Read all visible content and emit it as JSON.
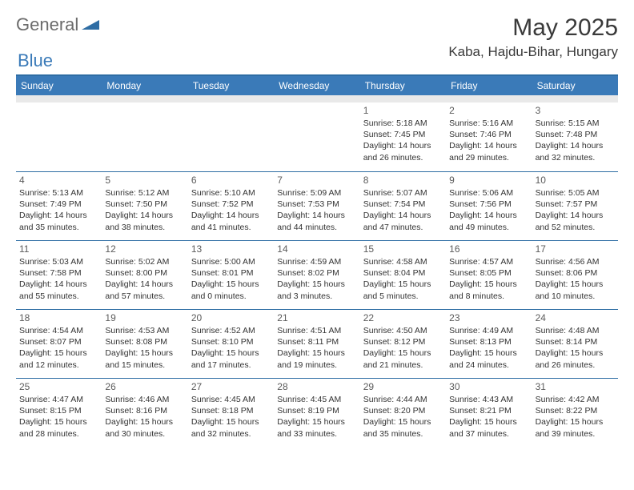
{
  "logo": {
    "general": "General",
    "blue": "Blue",
    "shape_color": "#2e6da4"
  },
  "title": "May 2025",
  "location": "Kaba, Hajdu-Bihar, Hungary",
  "header_bg": "#3a7ab8",
  "sep_bg": "#e9e9e9",
  "divider_color": "#2e6da4",
  "weekdays": [
    "Sunday",
    "Monday",
    "Tuesday",
    "Wednesday",
    "Thursday",
    "Friday",
    "Saturday"
  ],
  "weeks": [
    [
      null,
      null,
      null,
      null,
      {
        "n": "1",
        "sr": "5:18 AM",
        "ss": "7:45 PM",
        "dl": "14 hours and 26 minutes."
      },
      {
        "n": "2",
        "sr": "5:16 AM",
        "ss": "7:46 PM",
        "dl": "14 hours and 29 minutes."
      },
      {
        "n": "3",
        "sr": "5:15 AM",
        "ss": "7:48 PM",
        "dl": "14 hours and 32 minutes."
      }
    ],
    [
      {
        "n": "4",
        "sr": "5:13 AM",
        "ss": "7:49 PM",
        "dl": "14 hours and 35 minutes."
      },
      {
        "n": "5",
        "sr": "5:12 AM",
        "ss": "7:50 PM",
        "dl": "14 hours and 38 minutes."
      },
      {
        "n": "6",
        "sr": "5:10 AM",
        "ss": "7:52 PM",
        "dl": "14 hours and 41 minutes."
      },
      {
        "n": "7",
        "sr": "5:09 AM",
        "ss": "7:53 PM",
        "dl": "14 hours and 44 minutes."
      },
      {
        "n": "8",
        "sr": "5:07 AM",
        "ss": "7:54 PM",
        "dl": "14 hours and 47 minutes."
      },
      {
        "n": "9",
        "sr": "5:06 AM",
        "ss": "7:56 PM",
        "dl": "14 hours and 49 minutes."
      },
      {
        "n": "10",
        "sr": "5:05 AM",
        "ss": "7:57 PM",
        "dl": "14 hours and 52 minutes."
      }
    ],
    [
      {
        "n": "11",
        "sr": "5:03 AM",
        "ss": "7:58 PM",
        "dl": "14 hours and 55 minutes."
      },
      {
        "n": "12",
        "sr": "5:02 AM",
        "ss": "8:00 PM",
        "dl": "14 hours and 57 minutes."
      },
      {
        "n": "13",
        "sr": "5:00 AM",
        "ss": "8:01 PM",
        "dl": "15 hours and 0 minutes."
      },
      {
        "n": "14",
        "sr": "4:59 AM",
        "ss": "8:02 PM",
        "dl": "15 hours and 3 minutes."
      },
      {
        "n": "15",
        "sr": "4:58 AM",
        "ss": "8:04 PM",
        "dl": "15 hours and 5 minutes."
      },
      {
        "n": "16",
        "sr": "4:57 AM",
        "ss": "8:05 PM",
        "dl": "15 hours and 8 minutes."
      },
      {
        "n": "17",
        "sr": "4:56 AM",
        "ss": "8:06 PM",
        "dl": "15 hours and 10 minutes."
      }
    ],
    [
      {
        "n": "18",
        "sr": "4:54 AM",
        "ss": "8:07 PM",
        "dl": "15 hours and 12 minutes."
      },
      {
        "n": "19",
        "sr": "4:53 AM",
        "ss": "8:08 PM",
        "dl": "15 hours and 15 minutes."
      },
      {
        "n": "20",
        "sr": "4:52 AM",
        "ss": "8:10 PM",
        "dl": "15 hours and 17 minutes."
      },
      {
        "n": "21",
        "sr": "4:51 AM",
        "ss": "8:11 PM",
        "dl": "15 hours and 19 minutes."
      },
      {
        "n": "22",
        "sr": "4:50 AM",
        "ss": "8:12 PM",
        "dl": "15 hours and 21 minutes."
      },
      {
        "n": "23",
        "sr": "4:49 AM",
        "ss": "8:13 PM",
        "dl": "15 hours and 24 minutes."
      },
      {
        "n": "24",
        "sr": "4:48 AM",
        "ss": "8:14 PM",
        "dl": "15 hours and 26 minutes."
      }
    ],
    [
      {
        "n": "25",
        "sr": "4:47 AM",
        "ss": "8:15 PM",
        "dl": "15 hours and 28 minutes."
      },
      {
        "n": "26",
        "sr": "4:46 AM",
        "ss": "8:16 PM",
        "dl": "15 hours and 30 minutes."
      },
      {
        "n": "27",
        "sr": "4:45 AM",
        "ss": "8:18 PM",
        "dl": "15 hours and 32 minutes."
      },
      {
        "n": "28",
        "sr": "4:45 AM",
        "ss": "8:19 PM",
        "dl": "15 hours and 33 minutes."
      },
      {
        "n": "29",
        "sr": "4:44 AM",
        "ss": "8:20 PM",
        "dl": "15 hours and 35 minutes."
      },
      {
        "n": "30",
        "sr": "4:43 AM",
        "ss": "8:21 PM",
        "dl": "15 hours and 37 minutes."
      },
      {
        "n": "31",
        "sr": "4:42 AM",
        "ss": "8:22 PM",
        "dl": "15 hours and 39 minutes."
      }
    ]
  ],
  "labels": {
    "sunrise": "Sunrise: ",
    "sunset": "Sunset: ",
    "daylight": "Daylight: "
  }
}
